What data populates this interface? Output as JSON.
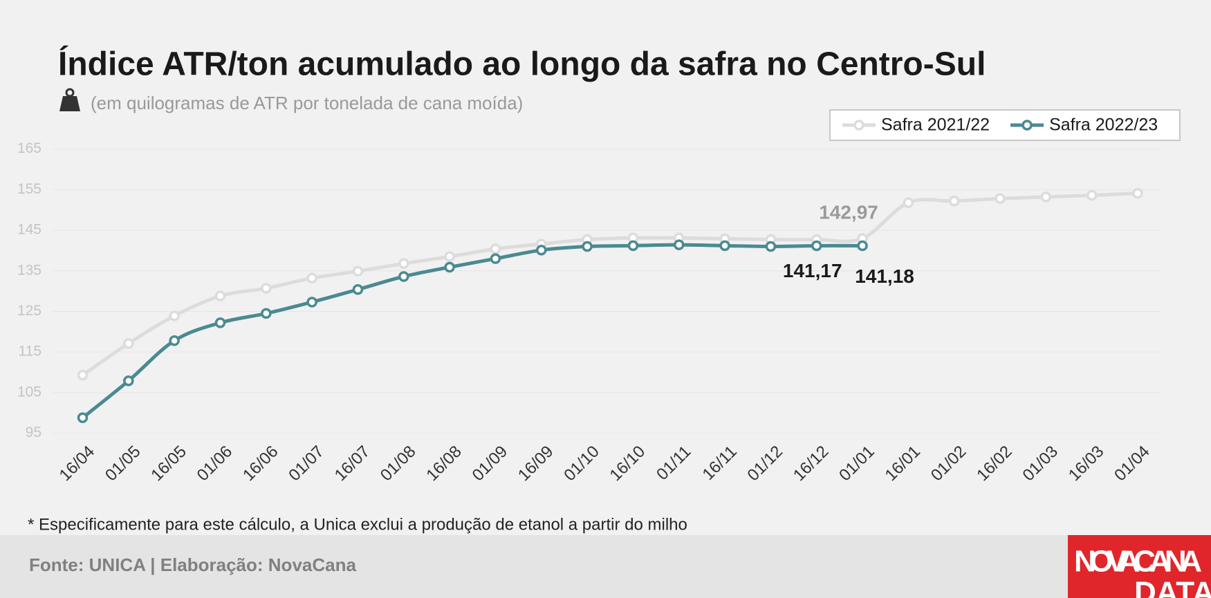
{
  "chart_data": {
    "type": "line",
    "title": "Índice ATR/ton acumulado ao longo da safra no Centro-Sul",
    "subtitle": "(em quilogramas de ATR por tonelada de cana moída)",
    "footnote": "* Especificamente para este cálculo, a Unica exclui a produção de etanol a partir do milho",
    "source": "Fonte: UNICA | Elaboração: NovaCana",
    "logo": [
      "NOVACANA",
      "DATA"
    ],
    "categories": [
      "16/04",
      "01/05",
      "16/05",
      "01/06",
      "16/06",
      "01/07",
      "16/07",
      "01/08",
      "16/08",
      "01/09",
      "16/09",
      "01/10",
      "16/10",
      "01/11",
      "16/11",
      "01/12",
      "16/12",
      "01/01",
      "16/01",
      "01/02",
      "16/02",
      "01/03",
      "16/03",
      "01/04"
    ],
    "series": [
      {
        "name": "Safra 2021/22",
        "color": "#dcdcdc",
        "label_color": "#9a9a9a",
        "values": [
          109.3,
          117.1,
          123.9,
          128.8,
          130.7,
          133.2,
          134.9,
          136.8,
          138.5,
          140.4,
          141.6,
          142.7,
          143.1,
          143.1,
          142.9,
          142.7,
          142.7,
          142.97,
          151.8,
          152.2,
          152.8,
          153.2,
          153.6,
          154.1
        ],
        "value_labels": [
          null,
          null,
          null,
          null,
          null,
          null,
          null,
          null,
          null,
          null,
          null,
          null,
          null,
          null,
          null,
          null,
          null,
          "142,97",
          null,
          null,
          null,
          null,
          null,
          null
        ]
      },
      {
        "name": "Safra 2022/23",
        "color": "#4a8a91",
        "label_color": "#1a1a1a",
        "values": [
          98.8,
          107.9,
          117.8,
          122.2,
          124.5,
          127.3,
          130.4,
          133.6,
          135.9,
          138.0,
          140.1,
          141.0,
          141.2,
          141.4,
          141.2,
          141.0,
          141.17,
          141.18,
          null,
          null,
          null,
          null,
          null,
          null
        ],
        "value_labels": [
          null,
          null,
          null,
          null,
          null,
          null,
          null,
          null,
          null,
          null,
          null,
          null,
          null,
          null,
          null,
          null,
          "141,17",
          "141,18",
          null,
          null,
          null,
          null,
          null,
          null
        ]
      }
    ],
    "ylim": [
      95,
      165
    ],
    "yticks": [
      95,
      105,
      115,
      125,
      135,
      145,
      155,
      165
    ],
    "grid": true,
    "legend": "upper right"
  }
}
